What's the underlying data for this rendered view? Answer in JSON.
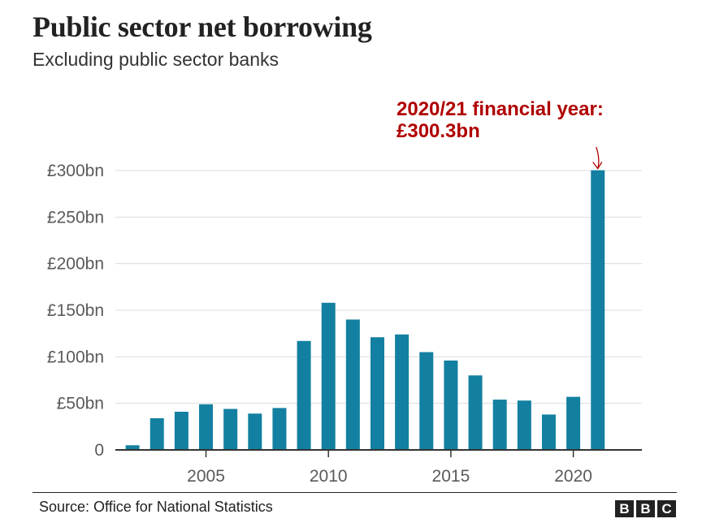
{
  "chart_data": {
    "type": "bar",
    "title": "Public sector net borrowing",
    "subtitle": "Excluding public sector banks",
    "x": [
      2002,
      2003,
      2004,
      2005,
      2006,
      2007,
      2008,
      2009,
      2010,
      2011,
      2012,
      2013,
      2014,
      2015,
      2016,
      2017,
      2018,
      2019,
      2020,
      2021
    ],
    "values": [
      5,
      34,
      41,
      49,
      44,
      39,
      45,
      117,
      158,
      140,
      121,
      124,
      105,
      96,
      80,
      54,
      53,
      38,
      57,
      300.3
    ],
    "xticks": [
      2005,
      2010,
      2015,
      2020
    ],
    "xtick_labels": [
      "2005",
      "2010",
      "2015",
      "2020"
    ],
    "yticks": [
      0,
      50,
      100,
      150,
      200,
      250,
      300
    ],
    "ytick_labels": [
      "0",
      "£50bn",
      "£100bn",
      "£150bn",
      "£200bn",
      "£250bn",
      "£300bn"
    ],
    "ylim": [
      0,
      300
    ],
    "grid": true,
    "bar_color": "#1380a1",
    "annotation": {
      "line1": "2020/21 financial year:",
      "line2": "£300.3bn",
      "target_x": 2021,
      "color": "#b00000"
    }
  },
  "footer": {
    "source": "Source: Office for National Statistics",
    "logo_letters": [
      "B",
      "B",
      "C"
    ]
  }
}
